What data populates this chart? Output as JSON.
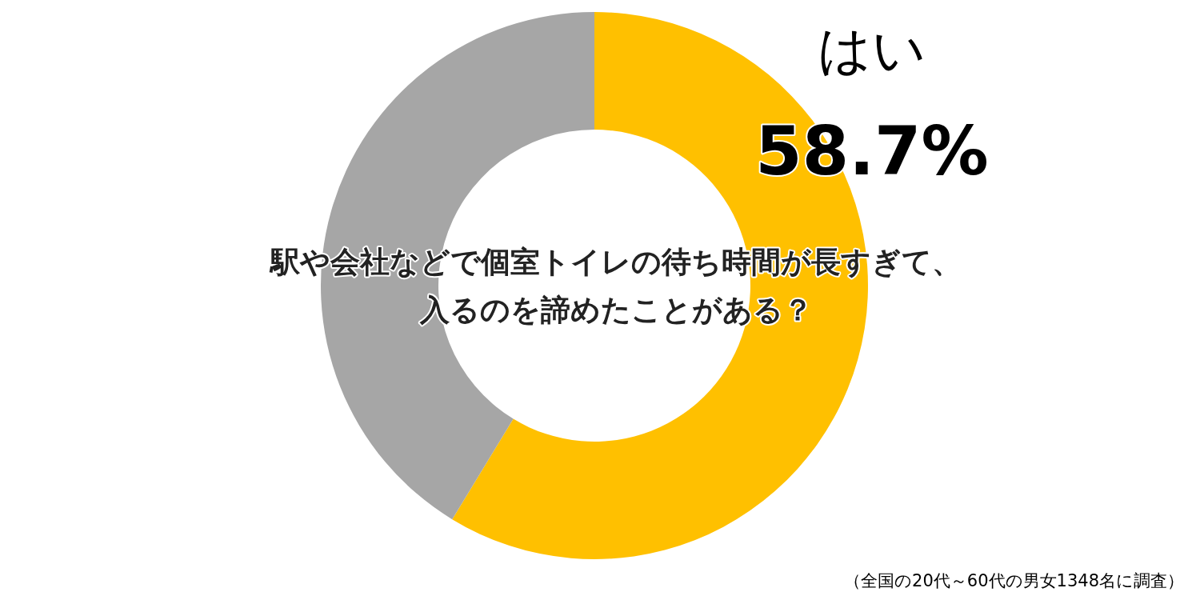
{
  "chart_data": {
    "type": "donut",
    "title": "駅や会社などで個室トイレの待ち時間が長すぎて、入るのを諦めたことがある？",
    "categories": [
      "はい",
      null
    ],
    "values": [
      58.7,
      41.3
    ],
    "colors": [
      "#ffc000",
      "#a6a6a6"
    ],
    "value_labels": [
      "58.7%",
      null
    ],
    "legend": false,
    "annotations": [
      "（全国の20代～60代の男女1348名に調査）"
    ]
  }
}
